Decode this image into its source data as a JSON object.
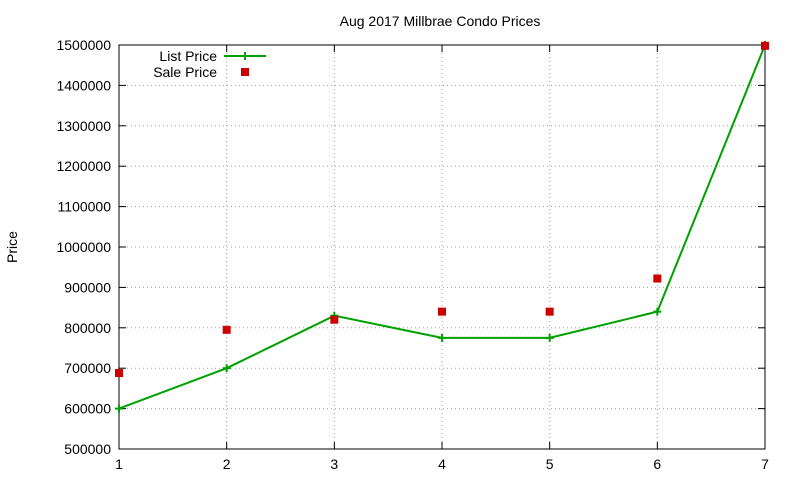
{
  "chart_data": {
    "type": "line",
    "title": "Aug 2017 Millbrae Condo Prices",
    "xlabel": "",
    "ylabel": "Price",
    "x": [
      1,
      2,
      3,
      4,
      5,
      6,
      7
    ],
    "xlim": [
      1,
      7
    ],
    "ylim": [
      500000,
      1500000
    ],
    "xticks": [
      "1",
      "2",
      "3",
      "4",
      "5",
      "6",
      "7"
    ],
    "yticks": [
      "500000",
      "600000",
      "700000",
      "800000",
      "900000",
      "1000000",
      "1100000",
      "1200000",
      "1300000",
      "1400000",
      "1500000"
    ],
    "grid": true,
    "legend_position": "top-left",
    "series": [
      {
        "name": "List Price",
        "style": "line-with-plus-markers",
        "color": "#00a000",
        "values": [
          600000,
          700000,
          830000,
          775000,
          775000,
          840000,
          1500000
        ]
      },
      {
        "name": "Sale Price",
        "style": "square-markers",
        "color": "#cc0000",
        "values": [
          688000,
          795000,
          820000,
          840000,
          840000,
          922000,
          1498000
        ]
      }
    ]
  }
}
